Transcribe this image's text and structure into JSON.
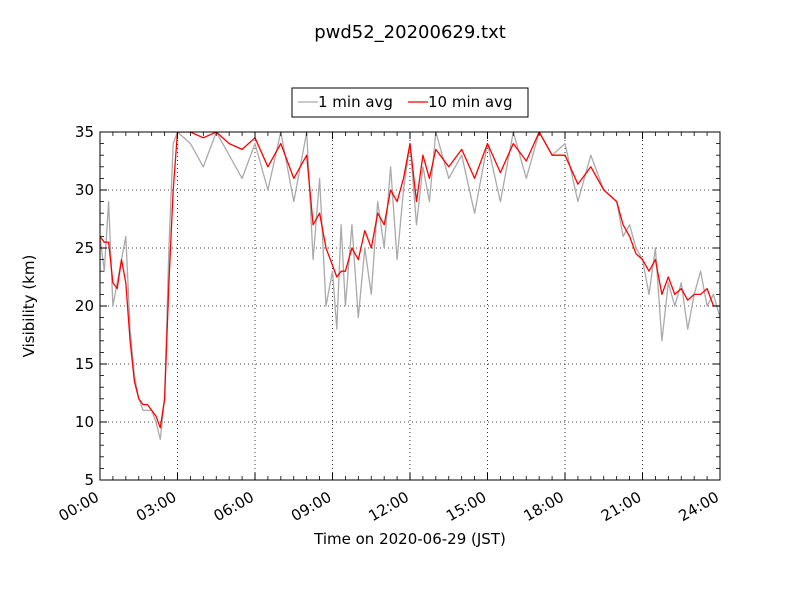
{
  "chart_data": {
    "type": "line",
    "title": "pwd52_20200629.txt",
    "xlabel": "Time on 2020-06-29 (JST)",
    "ylabel": "Visibility (km)",
    "xlim": [
      "00:00",
      "24:00"
    ],
    "ylim": [
      5,
      35
    ],
    "x_ticks": [
      "00:00",
      "03:00",
      "06:00",
      "09:00",
      "12:00",
      "15:00",
      "18:00",
      "21:00",
      "24:00"
    ],
    "y_ticks": [
      5,
      10,
      15,
      20,
      25,
      30,
      35
    ],
    "grid": true,
    "legend_position": "top-center",
    "series": [
      {
        "name": "1 min avg",
        "color": "#aaaaaa",
        "x": [
          "00:00",
          "00:10",
          "00:20",
          "00:30",
          "00:40",
          "00:50",
          "01:00",
          "01:10",
          "01:20",
          "01:30",
          "01:40",
          "01:50",
          "02:00",
          "02:10",
          "02:20",
          "02:30",
          "02:40",
          "02:50",
          "03:00",
          "03:30",
          "04:00",
          "04:30",
          "05:00",
          "05:30",
          "06:00",
          "06:30",
          "07:00",
          "07:30",
          "08:00",
          "08:15",
          "08:30",
          "08:45",
          "09:00",
          "09:10",
          "09:20",
          "09:30",
          "09:45",
          "10:00",
          "10:15",
          "10:30",
          "10:45",
          "11:00",
          "11:15",
          "11:30",
          "11:45",
          "12:00",
          "12:15",
          "12:30",
          "12:45",
          "13:00",
          "13:30",
          "14:00",
          "14:30",
          "15:00",
          "15:30",
          "16:00",
          "16:30",
          "17:00",
          "17:30",
          "18:00",
          "18:30",
          "19:00",
          "19:30",
          "20:00",
          "20:15",
          "20:30",
          "20:45",
          "21:00",
          "21:15",
          "21:30",
          "21:45",
          "22:00",
          "22:15",
          "22:30",
          "22:45",
          "23:00",
          "23:15",
          "23:30",
          "23:45",
          "24:00"
        ],
        "values": [
          26,
          23,
          29,
          20,
          22,
          24,
          26,
          18,
          14,
          12,
          11,
          11,
          11,
          10,
          8.5,
          12,
          25,
          34,
          35,
          34,
          32,
          35,
          33,
          31,
          34,
          30,
          35,
          29,
          35,
          24,
          31,
          20,
          23,
          18,
          27,
          20,
          27,
          19,
          25,
          21,
          29,
          25,
          32,
          24,
          30,
          34,
          27,
          32,
          29,
          35,
          31,
          33,
          28,
          34,
          29,
          35,
          31,
          35,
          33,
          34,
          29,
          33,
          30,
          29,
          26,
          27,
          25,
          24,
          21,
          25,
          17,
          22,
          20,
          22,
          18,
          21,
          23,
          20,
          21,
          19
        ]
      },
      {
        "name": "10 min avg",
        "color": "#ff0000",
        "x": [
          "00:00",
          "00:10",
          "00:20",
          "00:30",
          "00:40",
          "00:50",
          "01:00",
          "01:10",
          "01:20",
          "01:30",
          "01:40",
          "01:50",
          "02:00",
          "02:10",
          "02:20",
          "02:30",
          "02:40",
          "02:50",
          "03:00",
          "03:30",
          "04:00",
          "04:30",
          "05:00",
          "05:30",
          "06:00",
          "06:30",
          "07:00",
          "07:30",
          "08:00",
          "08:15",
          "08:30",
          "08:45",
          "09:00",
          "09:10",
          "09:20",
          "09:30",
          "09:45",
          "10:00",
          "10:15",
          "10:30",
          "10:45",
          "11:00",
          "11:15",
          "11:30",
          "11:45",
          "12:00",
          "12:15",
          "12:30",
          "12:45",
          "13:00",
          "13:30",
          "14:00",
          "14:30",
          "15:00",
          "15:30",
          "16:00",
          "16:30",
          "17:00",
          "17:30",
          "18:00",
          "18:30",
          "19:00",
          "19:30",
          "20:00",
          "20:15",
          "20:30",
          "20:45",
          "21:00",
          "21:15",
          "21:30",
          "21:45",
          "22:00",
          "22:15",
          "22:30",
          "22:45",
          "23:00",
          "23:15",
          "23:30",
          "23:45",
          "24:00"
        ],
        "values": [
          26,
          25.5,
          25.5,
          22,
          21.5,
          24,
          22,
          17,
          13.5,
          12,
          11.5,
          11.5,
          11,
          10.5,
          9.5,
          12,
          22,
          30,
          35,
          35,
          34.5,
          35,
          34,
          33.5,
          34.5,
          32,
          34,
          31,
          33,
          27,
          28,
          25,
          23.5,
          22.5,
          23,
          23,
          25,
          24,
          26.5,
          25,
          28,
          27,
          30,
          29,
          31,
          34,
          29,
          33,
          31,
          33.5,
          32,
          33.5,
          31,
          34,
          31.5,
          34,
          32.5,
          35,
          33,
          33,
          30.5,
          32,
          30,
          29,
          27,
          26,
          24.5,
          24,
          23,
          24,
          21,
          22.5,
          21,
          21.5,
          20.5,
          21,
          21,
          21.5,
          20,
          20
        ]
      }
    ]
  }
}
